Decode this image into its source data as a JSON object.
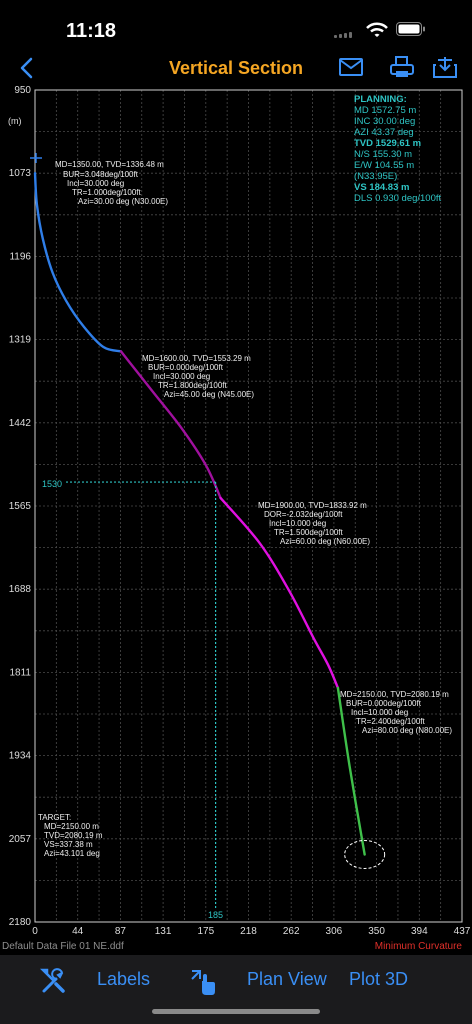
{
  "status": {
    "time": "11:18"
  },
  "nav": {
    "title": "Vertical Section"
  },
  "planning": {
    "header": "PLANNING:",
    "md": "MD 1572.75 m",
    "inc": "INC 30.00 deg",
    "azi": "AZI 43.37 deg",
    "tvd": "TVD 1529.61 m",
    "ns": "N/S 155.30 m",
    "ew": "E/W 104.55 m",
    "ew_dir": "(N33.95E)",
    "vs": "VS 184.83 m",
    "dls": "DLS 0.930 deg/100ft"
  },
  "y_axis": {
    "unit": "(m)",
    "ticks": [
      "950",
      "1073",
      "1196",
      "1319",
      "1442",
      "1565",
      "1688",
      "1811",
      "1934",
      "2057",
      "2180"
    ]
  },
  "x_axis": {
    "ticks": [
      "0",
      "44",
      "87",
      "131",
      "175",
      "218",
      "262",
      "306",
      "350",
      "394",
      "437"
    ]
  },
  "cursor": {
    "tvd_label": "1530",
    "vs_label": "185",
    "tvd": 1529.61,
    "vs": 184.83
  },
  "annotations": [
    {
      "lines": [
        "MD=1350.00, TVD=1336.48 m",
        "BUR=3.048deg/100ft",
        "Incl=30.000 deg",
        "TR=1.000deg/100ft",
        "Azi=30.00 deg (N30.00E)"
      ]
    },
    {
      "lines": [
        "MD=1600.00, TVD=1553.29 m",
        "BUR=0.000deg/100ft",
        "Incl=30.000 deg",
        "TR=1.800deg/100ft",
        "Azi=45.00 deg (N45.00E)"
      ]
    },
    {
      "lines": [
        "MD=1900.00, TVD=1833.92 m",
        "DOR=-2.032deg/100ft",
        "Incl=10.000 deg",
        "TR=1.500deg/100ft",
        "Azi=60.00 deg (N60.00E)"
      ]
    },
    {
      "lines": [
        "MD=2150.00, TVD=2080.19 m",
        "BUR=0.000deg/100ft",
        "Incl=10.000 deg",
        "TR=2.400deg/100ft",
        "Azi=80.00 deg (N80.00E)"
      ]
    }
  ],
  "target": {
    "lines": [
      "TARGET:",
      "MD=2150.00 m",
      "TVD=2080.19 m",
      "VS=337.38 m",
      "Azi=43.101 deg"
    ]
  },
  "chart_data": {
    "type": "line",
    "xlim": [
      0,
      437
    ],
    "ylim": [
      950,
      2180
    ],
    "y_inverted": true,
    "series": [
      {
        "color": "#2f7ee8",
        "x": [
          0,
          2,
          8,
          18,
          32,
          50,
          70,
          88
        ],
        "y": [
          1073,
          1120,
          1170,
          1220,
          1262,
          1300,
          1330,
          1336.48
        ]
      },
      {
        "color": "#a0109e",
        "x": [
          88,
          120,
          150,
          175,
          190
        ],
        "y": [
          1336.48,
          1395,
          1450,
          1505,
          1553.29
        ]
      },
      {
        "color": "#e010e0",
        "x": [
          190,
          230,
          260,
          285,
          300,
          310
        ],
        "y": [
          1553.29,
          1620,
          1690,
          1760,
          1800,
          1833.92
        ]
      },
      {
        "color": "#3fc04a",
        "x": [
          310,
          322,
          337.38
        ],
        "y": [
          1833.92,
          1950,
          2080.19
        ]
      }
    ],
    "target": {
      "x": 337.38,
      "y": 2080.19
    },
    "tie_in": {
      "x": 0,
      "y": 1073
    }
  },
  "footer": {
    "file": "Default Data File 01 NE.ddf",
    "method": "Minimum Curvature"
  },
  "toolbar": {
    "labels": "Labels",
    "plan_view": "Plan View",
    "plot_3d": "Plot 3D"
  },
  "colors": {
    "accent": "#3a8ff5",
    "title": "#f5a623",
    "info": "#2ec4c4",
    "method": "#e0302a"
  }
}
